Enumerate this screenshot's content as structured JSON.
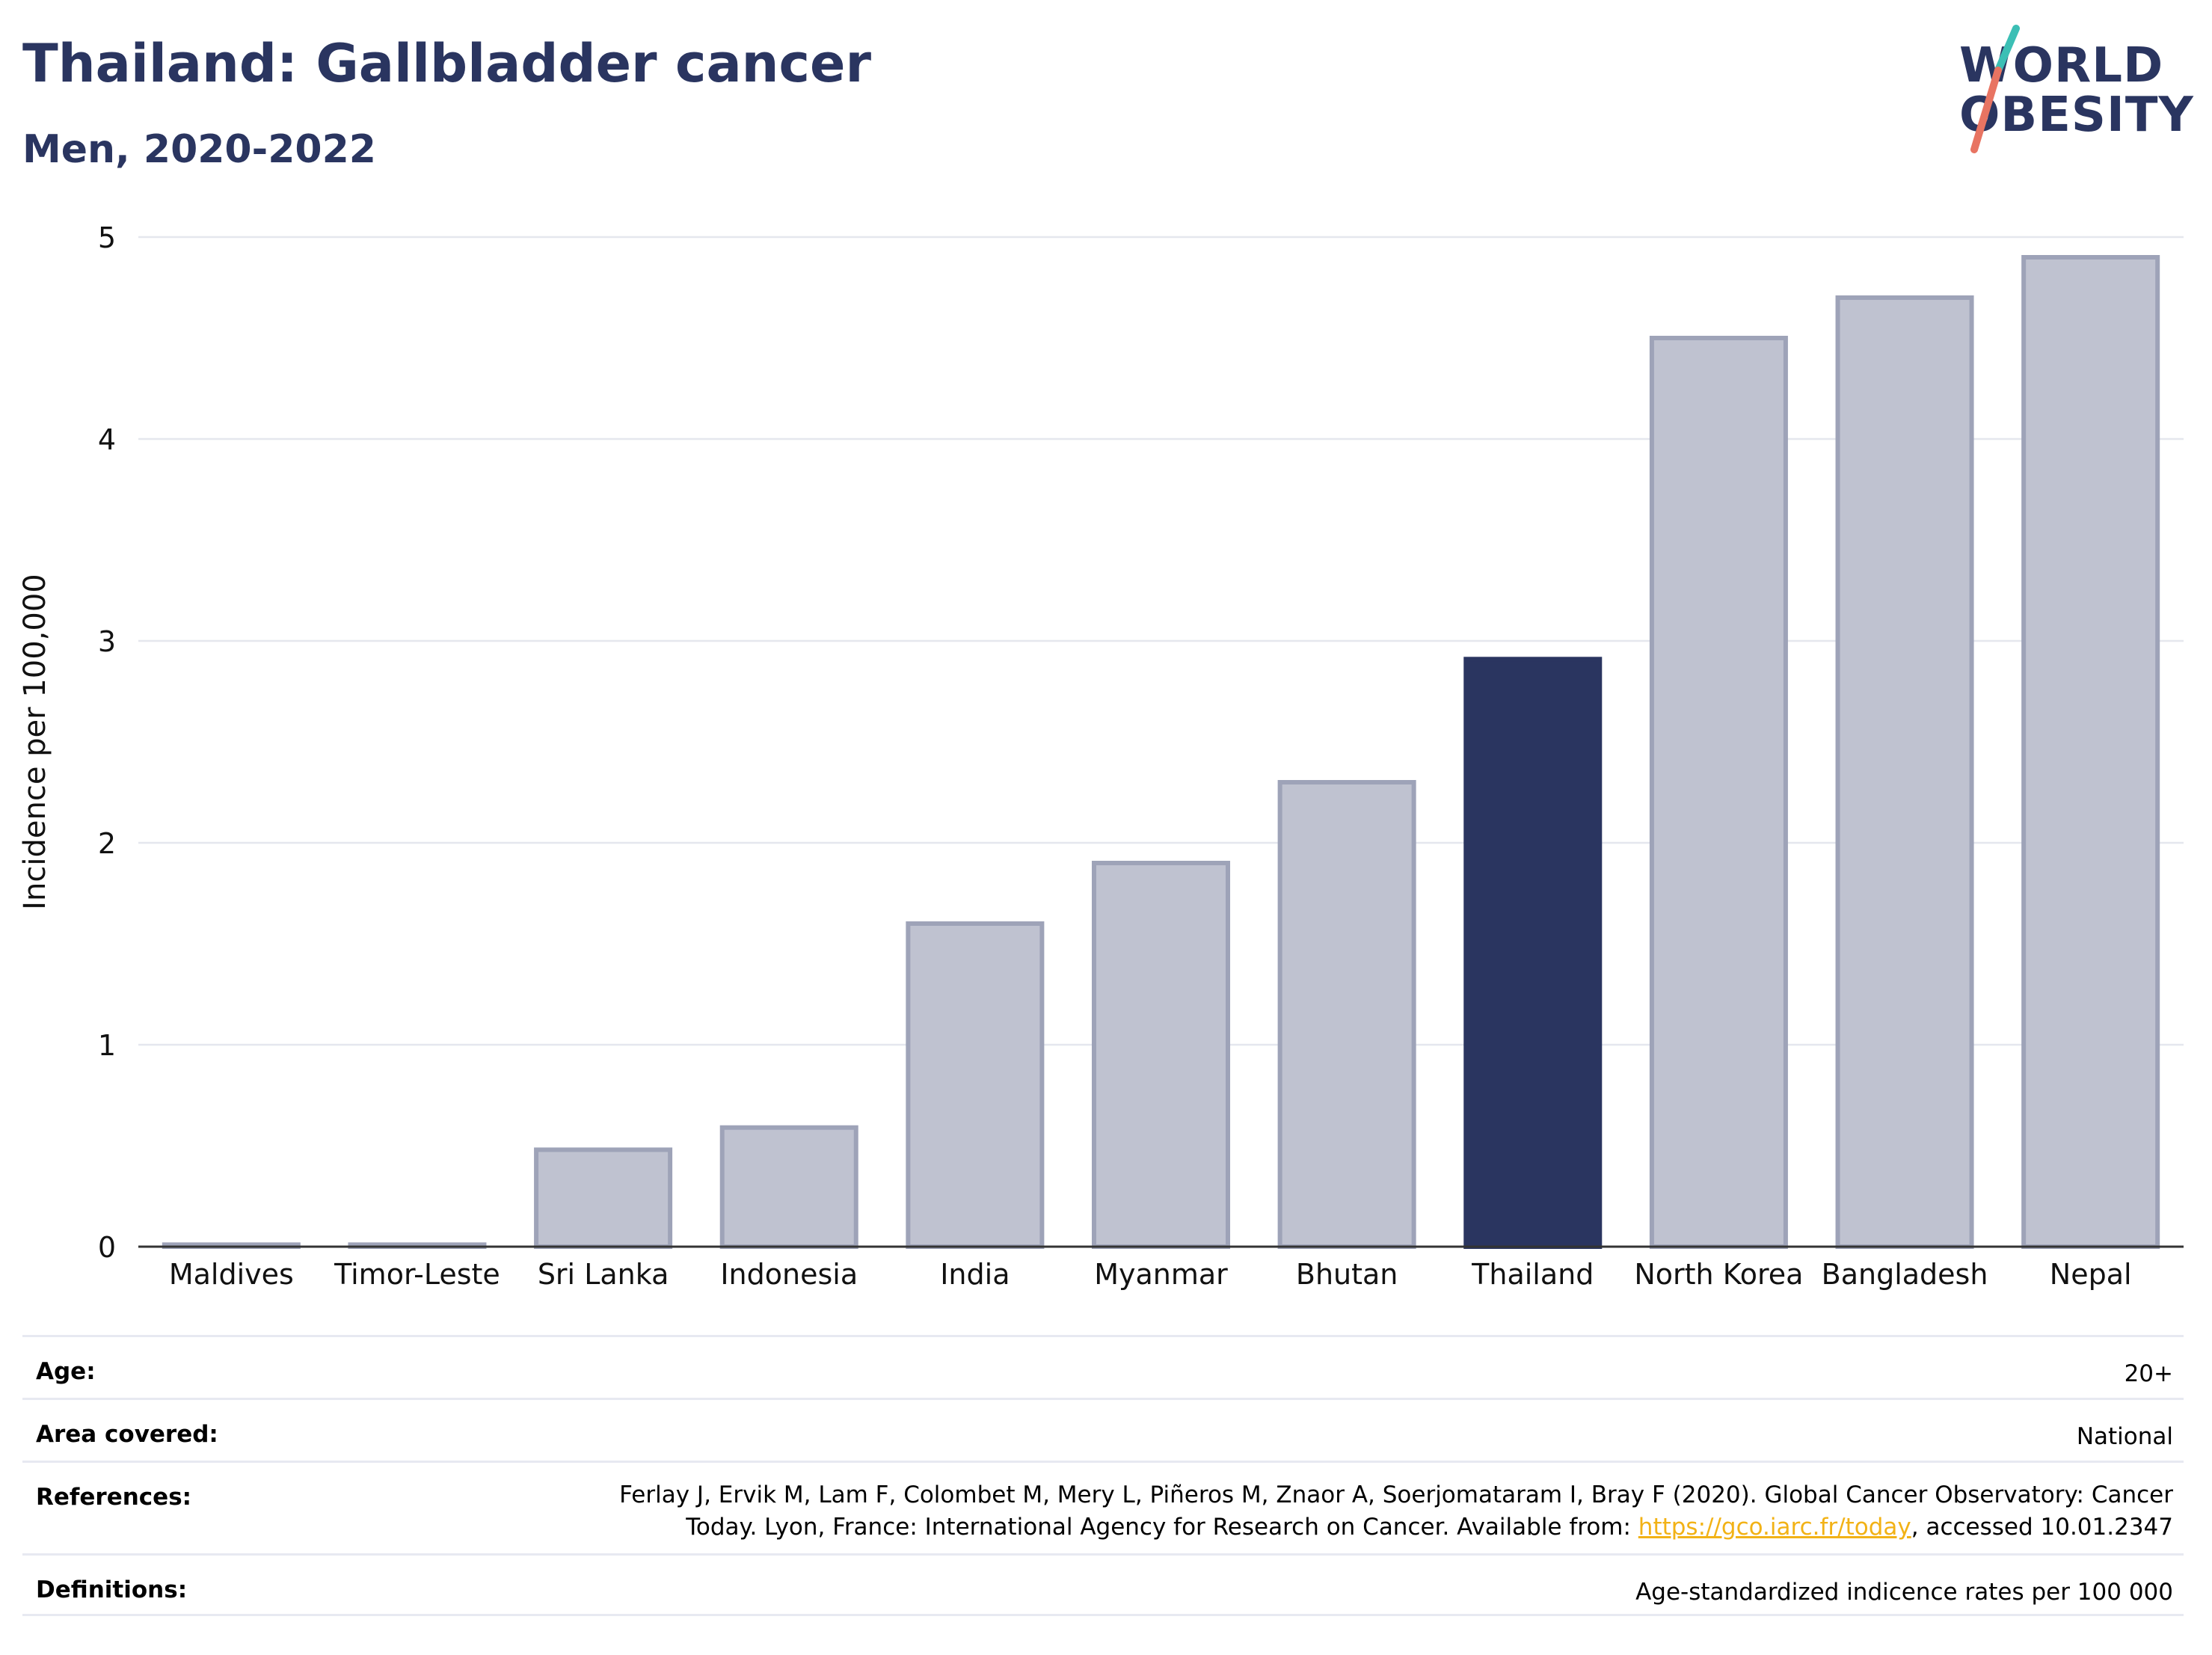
{
  "header": {
    "title": "Thailand: Gallbladder cancer",
    "subtitle": "Men, 2020-2022"
  },
  "logo": {
    "line1": "WORLD",
    "line2": "OBESITY"
  },
  "colors": {
    "highlight": "#2a3560",
    "bar_fill": "#bfc2d0",
    "bar_edge": "#9ea3b8",
    "grid": "#e5e7ee",
    "logo_teal": "#3cbfb5",
    "logo_coral": "#e87462",
    "link": "#f2b216"
  },
  "chart_data": {
    "type": "bar",
    "categories": [
      "Maldives",
      "Timor-Leste",
      "Sri Lanka",
      "Indonesia",
      "India",
      "Myanmar",
      "Bhutan",
      "Thailand",
      "North Korea",
      "Bangladesh",
      "Nepal"
    ],
    "values": [
      0.01,
      0.01,
      0.48,
      0.59,
      1.6,
      1.9,
      2.3,
      2.91,
      4.5,
      4.7,
      4.9
    ],
    "highlight": "Thailand",
    "xlabel": "",
    "ylabel": "Incidence per 100,000",
    "ylim": [
      0,
      5
    ],
    "yticks": [
      0,
      1,
      2,
      3,
      4,
      5
    ],
    "grid": true
  },
  "meta": {
    "age": {
      "label": "Age:",
      "value": "20+"
    },
    "area": {
      "label": "Area covered:",
      "value": "National"
    },
    "references": {
      "label": "References:",
      "line1": "Ferlay J, Ervik M, Lam F, Colombet M, Mery L, Piñeros M, Znaor A, Soerjomataram I, Bray F (2020). Global Cancer Observatory: Cancer",
      "line2_pre": "Today. Lyon, France: International Agency for Research on Cancer. Available from: ",
      "link": "https://gco.iarc.fr/today",
      "line2_post": ", accessed 10.01.2347"
    },
    "definitions": {
      "label": "Definitions:",
      "value": "Age-standardized indicence rates per 100 000"
    }
  }
}
